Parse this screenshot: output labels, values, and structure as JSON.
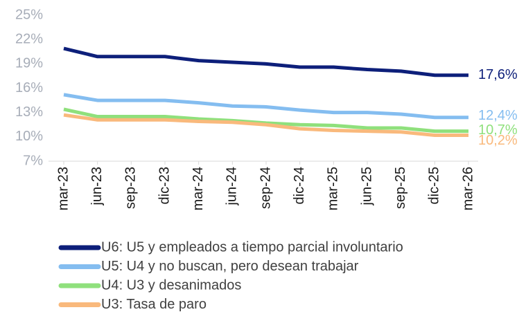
{
  "chart_data": {
    "type": "line",
    "categories": [
      "mar-23",
      "jun-23",
      "sep-23",
      "dic-23",
      "mar-24",
      "jun-24",
      "sep-24",
      "dic-24",
      "mar-25",
      "jun-25",
      "sep-25",
      "dic-25",
      "mar-26"
    ],
    "ylim": [
      7,
      25
    ],
    "yticks": [
      {
        "value": 7,
        "label": "7%"
      },
      {
        "value": 10,
        "label": "10%"
      },
      {
        "value": 13,
        "label": "13%"
      },
      {
        "value": 16,
        "label": "16%"
      },
      {
        "value": 19,
        "label": "19%"
      },
      {
        "value": 22,
        "label": "22%"
      },
      {
        "value": 25,
        "label": "25%"
      }
    ],
    "grid": false,
    "legend": "bottom",
    "series": [
      {
        "name": "U6: U5 y empleados a tiempo parcial involuntario",
        "color": "#0d1f7a",
        "values": [
          20.9,
          19.9,
          19.9,
          19.9,
          19.4,
          19.2,
          19.0,
          18.6,
          18.6,
          18.3,
          18.1,
          17.6,
          17.6
        ],
        "value_labels": [
          null,
          null,
          null,
          null,
          null,
          null,
          null,
          null,
          null,
          null,
          null,
          null,
          "17,6%"
        ]
      },
      {
        "name": "U5: U4 y no buscan, pero desean trabajar",
        "color": "#84bdf0",
        "values": [
          15.2,
          14.5,
          14.5,
          14.5,
          14.2,
          13.8,
          13.7,
          13.3,
          13.0,
          13.0,
          12.8,
          12.4,
          12.4
        ],
        "value_labels": [
          null,
          null,
          null,
          null,
          null,
          null,
          null,
          null,
          null,
          null,
          null,
          null,
          "12,4%"
        ]
      },
      {
        "name": "U4: U3 y desanimados",
        "color": "#8fe07c",
        "values": [
          13.4,
          12.5,
          12.5,
          12.5,
          12.2,
          12.0,
          11.7,
          11.5,
          11.4,
          11.1,
          11.1,
          10.7,
          10.7
        ],
        "value_labels": [
          null,
          null,
          null,
          null,
          null,
          null,
          null,
          null,
          null,
          null,
          null,
          null,
          "10,7%"
        ]
      },
      {
        "name": "U3: Tasa de paro",
        "color": "#f9b97c",
        "values": [
          12.7,
          12.1,
          12.1,
          12.1,
          11.9,
          11.8,
          11.5,
          11.0,
          10.8,
          10.7,
          10.6,
          10.2,
          10.2
        ],
        "value_labels": [
          null,
          null,
          null,
          null,
          null,
          null,
          null,
          null,
          null,
          null,
          null,
          null,
          "10,2%"
        ]
      }
    ]
  }
}
